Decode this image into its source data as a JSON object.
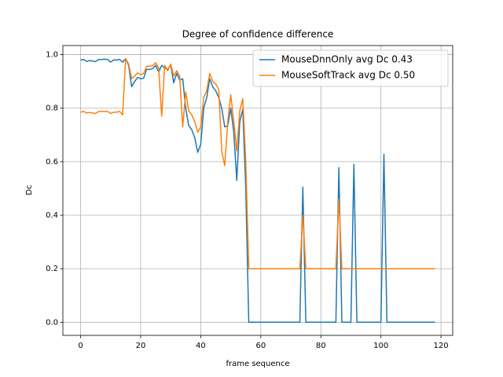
{
  "chart_data": {
    "type": "line",
    "title": "Degree of confidence difference",
    "xlabel": "frame sequence",
    "ylabel": "Dc",
    "x": [
      0,
      1,
      2,
      3,
      4,
      5,
      6,
      7,
      8,
      9,
      10,
      11,
      12,
      13,
      14,
      15,
      16,
      17,
      18,
      19,
      20,
      21,
      22,
      23,
      24,
      25,
      26,
      27,
      28,
      29,
      30,
      31,
      32,
      33,
      34,
      35,
      36,
      37,
      38,
      39,
      40,
      41,
      42,
      43,
      44,
      45,
      46,
      47,
      48,
      49,
      50,
      51,
      52,
      53,
      54,
      55,
      56,
      57,
      58,
      59,
      60,
      61,
      62,
      63,
      64,
      65,
      66,
      67,
      68,
      69,
      70,
      71,
      72,
      73,
      74,
      75,
      76,
      77,
      78,
      79,
      80,
      81,
      82,
      83,
      84,
      85,
      86,
      87,
      88,
      89,
      90,
      91,
      92,
      93,
      94,
      95,
      96,
      97,
      98,
      99,
      100,
      101,
      102,
      103,
      104,
      105,
      106,
      107,
      108,
      109,
      110,
      111,
      112,
      113,
      114,
      115,
      116,
      117,
      118
    ],
    "series": [
      {
        "name": "MouseDnnOnly avg Dc 0.43",
        "color": "#1f77b4",
        "values": [
          0.98,
          0.982,
          0.975,
          0.978,
          0.976,
          0.974,
          0.982,
          0.982,
          0.983,
          0.982,
          0.972,
          0.98,
          0.98,
          0.982,
          0.972,
          0.985,
          0.96,
          0.88,
          0.9,
          0.915,
          0.91,
          0.912,
          0.945,
          0.945,
          0.948,
          0.96,
          0.935,
          0.96,
          0.95,
          0.945,
          0.962,
          0.895,
          0.93,
          0.905,
          0.91,
          0.8,
          0.735,
          0.72,
          0.69,
          0.635,
          0.665,
          0.8,
          0.84,
          0.91,
          0.88,
          0.865,
          0.84,
          0.8,
          0.73,
          0.735,
          0.8,
          0.71,
          0.53,
          0.75,
          0.795,
          0.5,
          0,
          0,
          0,
          0,
          0,
          0,
          0,
          0,
          0,
          0,
          0,
          0,
          0,
          0,
          0,
          0,
          0,
          0,
          0.505,
          0,
          0,
          0,
          0,
          0,
          0,
          0,
          0,
          0,
          0,
          0,
          0.578,
          0,
          0,
          0,
          0,
          0.59,
          0,
          0,
          0,
          0,
          0,
          0,
          0,
          0,
          0,
          0.628,
          0,
          0,
          0,
          0,
          0,
          0,
          0,
          0,
          0,
          0,
          0,
          0,
          0,
          0,
          0,
          0,
          0
        ]
      },
      {
        "name": "MouseSoftTrack avg Dc 0.50",
        "color": "#ff7f0e",
        "values": [
          0.785,
          0.788,
          0.782,
          0.784,
          0.782,
          0.78,
          0.788,
          0.788,
          0.788,
          0.788,
          0.78,
          0.785,
          0.785,
          0.788,
          0.775,
          0.985,
          0.965,
          0.91,
          0.92,
          0.932,
          0.925,
          0.93,
          0.957,
          0.957,
          0.958,
          0.97,
          0.95,
          0.77,
          0.96,
          0.94,
          0.965,
          0.92,
          0.94,
          0.92,
          0.73,
          0.86,
          0.79,
          0.775,
          0.75,
          0.71,
          0.73,
          0.84,
          0.865,
          0.93,
          0.9,
          0.89,
          0.87,
          0.64,
          0.585,
          0.75,
          0.85,
          0.75,
          0.64,
          0.79,
          0.835,
          0.6,
          0.2,
          0.2,
          0.2,
          0.2,
          0.2,
          0.2,
          0.2,
          0.2,
          0.2,
          0.2,
          0.2,
          0.2,
          0.2,
          0.2,
          0.2,
          0.2,
          0.2,
          0.2,
          0.4,
          0.2,
          0.2,
          0.2,
          0.2,
          0.2,
          0.2,
          0.2,
          0.2,
          0.2,
          0.2,
          0.2,
          0.46,
          0.2,
          0.2,
          0.2,
          0.2,
          0.2,
          0.2,
          0.2,
          0.2,
          0.2,
          0.2,
          0.2,
          0.2,
          0.2,
          0.2,
          0.2,
          0.2,
          0.2,
          0.2,
          0.2,
          0.2,
          0.2,
          0.2,
          0.2,
          0.2,
          0.2,
          0.2,
          0.2,
          0.2,
          0.2,
          0.2,
          0.2,
          0.2
        ]
      }
    ],
    "xlim": [
      -5.9,
      123.9
    ],
    "xticks": [
      0,
      20,
      40,
      60,
      80,
      100,
      120
    ],
    "ylim": [
      -0.049,
      1.034
    ],
    "yticks": [
      {
        "value": 0,
        "label": "0.0"
      },
      {
        "value": 0.2,
        "label": "0.2"
      },
      {
        "value": 0.4,
        "label": "0.4"
      },
      {
        "value": 0.6,
        "label": "0.6"
      },
      {
        "value": 0.8,
        "label": "0.8"
      },
      {
        "value": 1,
        "label": "1.0"
      }
    ],
    "grid": true,
    "legend": "upper right"
  }
}
